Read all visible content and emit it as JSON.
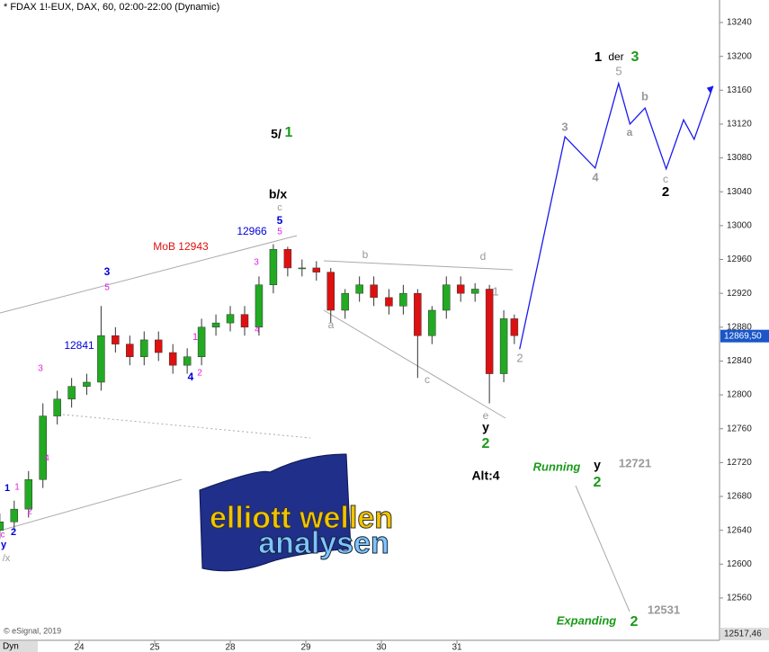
{
  "chart_data": {
    "type": "candlestick",
    "title": "* FDAX 1!-EUX, DAX, 60, 02:00-22:00 (Dynamic)",
    "credit": "© eSignal, 2019",
    "corner_label": "Dyn",
    "x": [
      -1.05,
      -0.86,
      -0.67,
      -0.48,
      -0.29,
      -0.1,
      0.1,
      0.29,
      0.48,
      0.67,
      0.86,
      1.05,
      1.24,
      1.43,
      1.62,
      1.81,
      2.0,
      2.19,
      2.38,
      2.57,
      2.76,
      2.95,
      3.14,
      3.33,
      3.52,
      3.71,
      3.9,
      4.1,
      4.29,
      4.48,
      4.67,
      4.86,
      5.05,
      5.24,
      5.43,
      5.62,
      5.76
    ],
    "open": [
      12640,
      12650,
      12665,
      12700,
      12775,
      12795,
      12810,
      12815,
      12870,
      12860,
      12845,
      12865,
      12850,
      12835,
      12845,
      12880,
      12885,
      12895,
      12880,
      12930,
      12972,
      12950,
      12950,
      12945,
      12900,
      12920,
      12930,
      12915,
      12905,
      12920,
      12870,
      12900,
      12930,
      12920,
      12925,
      12825,
      12890
    ],
    "high": [
      12660,
      12675,
      12710,
      12790,
      12805,
      12820,
      12825,
      12905,
      12880,
      12870,
      12875,
      12875,
      12860,
      12855,
      12890,
      12895,
      12905,
      12905,
      12940,
      12978,
      12975,
      12960,
      12958,
      12950,
      12925,
      12940,
      12940,
      12925,
      12930,
      12925,
      12905,
      12940,
      12940,
      12932,
      12930,
      12900,
      12895
    ],
    "low": [
      12630,
      12640,
      12655,
      12690,
      12765,
      12785,
      12800,
      12805,
      12850,
      12835,
      12835,
      12840,
      12825,
      12825,
      12835,
      12870,
      12875,
      12870,
      12870,
      12920,
      12940,
      12940,
      12935,
      12885,
      12890,
      12910,
      12905,
      12895,
      12895,
      12820,
      12860,
      12890,
      12910,
      12910,
      12790,
      12815,
      12860
    ],
    "close": [
      12650,
      12665,
      12700,
      12775,
      12795,
      12810,
      12815,
      12870,
      12860,
      12845,
      12865,
      12850,
      12835,
      12845,
      12880,
      12885,
      12895,
      12880,
      12930,
      12972,
      12950,
      12950,
      12945,
      12900,
      12920,
      12930,
      12915,
      12905,
      12920,
      12870,
      12900,
      12930,
      12920,
      12925,
      12825,
      12890,
      12870
    ],
    "up_color": "#22aa22",
    "down_color": "#dd1111",
    "projection": {
      "color": "#1a1aee",
      "x": [
        5.83,
        6.43,
        6.83,
        7.14,
        7.29,
        7.49,
        7.77,
        8.0,
        8.14,
        8.39
      ],
      "y": [
        12854,
        13105,
        13068,
        13168,
        13120,
        13139,
        13067,
        13125,
        13102,
        13165
      ]
    },
    "xlim": [
      -1.048,
      8.476
    ],
    "ylim": [
      12510,
      13266.6
    ],
    "xticks": [
      {
        "value": 0,
        "label": "24"
      },
      {
        "value": 1,
        "label": "25"
      },
      {
        "value": 2,
        "label": "28"
      },
      {
        "value": 3,
        "label": "29"
      },
      {
        "value": 4,
        "label": "30"
      },
      {
        "value": 5,
        "label": "31"
      }
    ],
    "yticks": [
      12560,
      12600,
      12640,
      12680,
      12720,
      12760,
      12800,
      12840,
      12880,
      12920,
      12960,
      13000,
      13040,
      13080,
      13120,
      13160,
      13200,
      13240
    ],
    "last_price": {
      "value": 12869.5,
      "label": "12869,50"
    },
    "bottom_price": {
      "value": 12517.46,
      "label": "12517,46"
    },
    "annotations": [
      {
        "text": "b/x",
        "color": "#000"
      },
      {
        "text": "5/",
        "color": "#000"
      },
      {
        "text": "1",
        "color": "#1a9a1a"
      },
      {
        "text": "c",
        "color": "#999"
      },
      {
        "text": "5",
        "color": "#0000dd"
      },
      {
        "text": "5",
        "color": "#e020e0"
      },
      {
        "text": "12966",
        "color": "#0000dd"
      },
      {
        "text": "MoB 12943",
        "color": "#dd1111"
      },
      {
        "text": "3",
        "color": "#e020e0"
      },
      {
        "text": "3",
        "color": "#0000dd"
      },
      {
        "text": "5",
        "color": "#e020e0"
      },
      {
        "text": "12841",
        "color": "#0000dd"
      },
      {
        "text": "1",
        "color": "#e020e0"
      },
      {
        "text": "4",
        "color": "#0000dd"
      },
      {
        "text": "2",
        "color": "#e020e0"
      },
      {
        "text": "4",
        "color": "#e020e0"
      },
      {
        "text": "3",
        "color": "#e020e0"
      },
      {
        "text": "4",
        "color": "#e020e0"
      },
      {
        "text": "1",
        "color": "#0000dd"
      },
      {
        "text": "1",
        "color": "#e020e0"
      },
      {
        "text": "2",
        "color": "#e020e0"
      },
      {
        "text": "c",
        "color": "#e020e0"
      },
      {
        "text": "2",
        "color": "#0000dd"
      },
      {
        "text": "y",
        "color": "#0000dd"
      },
      {
        "text": "/x",
        "color": "#999"
      },
      {
        "text": "b",
        "color": "#999"
      },
      {
        "text": "a",
        "color": "#999"
      },
      {
        "text": "c",
        "color": "#999"
      },
      {
        "text": "d",
        "color": "#999"
      },
      {
        "text": "1",
        "color": "#999"
      },
      {
        "text": "2",
        "color": "#999"
      },
      {
        "text": "e",
        "color": "#999"
      },
      {
        "text": "y",
        "color": "#000"
      },
      {
        "text": "2",
        "color": "#1a9a1a"
      },
      {
        "text": "Alt:4",
        "color": "#000"
      },
      {
        "text": "Running",
        "color": "#1a9a1a"
      },
      {
        "text": "y",
        "color": "#000"
      },
      {
        "text": "2",
        "color": "#1a9a1a"
      },
      {
        "text": "12721",
        "color": "#999"
      },
      {
        "text": "Expanding",
        "color": "#1a9a1a"
      },
      {
        "text": "2",
        "color": "#1a9a1a"
      },
      {
        "text": "12531",
        "color": "#999"
      },
      {
        "text": "1",
        "color": "#000"
      },
      {
        "text": "der",
        "color": "#000"
      },
      {
        "text": "3",
        "color": "#1a9a1a"
      },
      {
        "text": "5",
        "color": "#999"
      },
      {
        "text": "3",
        "color": "#999"
      },
      {
        "text": "4",
        "color": "#999"
      },
      {
        "text": "b",
        "color": "#999"
      },
      {
        "text": "a",
        "color": "#999"
      },
      {
        "text": "c",
        "color": "#999"
      },
      {
        "text": "2",
        "color": "#000"
      }
    ],
    "logo": {
      "line1": "elliott wellen",
      "line2": "analysen"
    }
  }
}
